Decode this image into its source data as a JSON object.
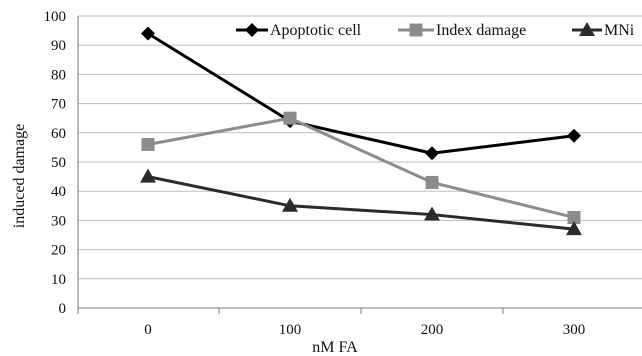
{
  "chart_data": {
    "type": "line",
    "title": "",
    "xlabel": "nM FA",
    "ylabel": "induced damage",
    "categories": [
      "0",
      "100",
      "200",
      "300"
    ],
    "ylim": [
      0,
      100
    ],
    "yticks": [
      0,
      10,
      20,
      30,
      40,
      50,
      60,
      70,
      80,
      90,
      100
    ],
    "grid": "horizontal",
    "legend_position": "top",
    "series": [
      {
        "name": "Apoptotic cell",
        "values": [
          94,
          64,
          53,
          59
        ],
        "color": "#000000",
        "marker": "diamond"
      },
      {
        "name": "Index damage",
        "values": [
          56,
          65,
          43,
          31
        ],
        "color": "#8c8c8c",
        "marker": "square"
      },
      {
        "name": "MNi",
        "values": [
          45,
          35,
          32,
          27
        ],
        "color": "#2b2b2b",
        "marker": "triangle"
      }
    ]
  }
}
